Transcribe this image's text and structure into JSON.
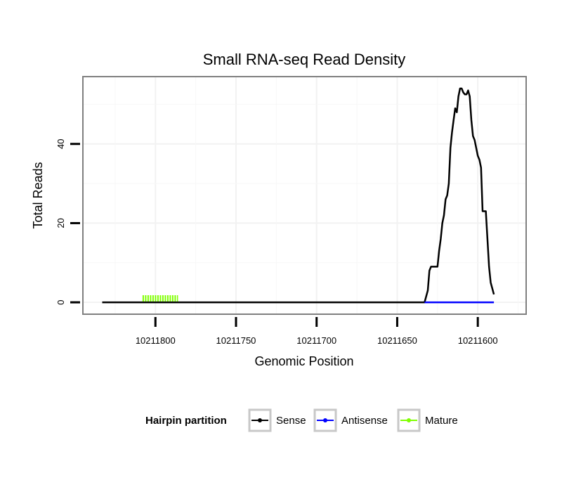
{
  "chart_data": {
    "type": "line",
    "title": "Small RNA-seq Read Density",
    "xlabel": "Genomic Position",
    "ylabel": "Total Reads",
    "x_reversed": true,
    "xlim": [
      10211845,
      10211570
    ],
    "ylim": [
      -3,
      57
    ],
    "x_ticks": [
      10211800,
      10211750,
      10211700,
      10211650,
      10211600
    ],
    "y_ticks": [
      0,
      20,
      40
    ],
    "grid": true,
    "legend": {
      "title": "Hairpin partition",
      "placement": "bottom",
      "entries": [
        "Sense",
        "Antisense",
        "Mature"
      ]
    },
    "series": [
      {
        "name": "Sense",
        "color": "#000000",
        "points": [
          [
            10211833,
            0
          ],
          [
            10211633,
            0
          ],
          [
            10211631,
            3
          ],
          [
            10211630,
            8
          ],
          [
            10211629,
            9
          ],
          [
            10211625,
            9
          ],
          [
            10211624,
            13
          ],
          [
            10211623,
            16
          ],
          [
            10211622,
            20
          ],
          [
            10211621,
            22
          ],
          [
            10211620,
            26
          ],
          [
            10211619,
            27
          ],
          [
            10211618,
            30
          ],
          [
            10211617,
            39
          ],
          [
            10211616,
            43
          ],
          [
            10211615,
            46
          ],
          [
            10211614,
            49
          ],
          [
            10211613,
            48
          ],
          [
            10211612,
            52
          ],
          [
            10211611,
            54
          ],
          [
            10211610,
            54
          ],
          [
            10211609,
            53
          ],
          [
            10211608,
            52.5
          ],
          [
            10211607,
            52.5
          ],
          [
            10211606,
            53.5
          ],
          [
            10211605,
            52
          ],
          [
            10211604,
            46
          ],
          [
            10211603,
            42
          ],
          [
            10211602,
            41
          ],
          [
            10211601,
            39
          ],
          [
            10211600,
            37
          ],
          [
            10211599,
            36
          ],
          [
            10211598,
            34
          ],
          [
            10211597,
            23
          ],
          [
            10211595,
            23
          ],
          [
            10211594,
            16
          ],
          [
            10211593,
            9
          ],
          [
            10211592,
            5
          ],
          [
            10211590,
            2
          ]
        ]
      },
      {
        "name": "Antisense",
        "color": "#0000ff",
        "points": [
          [
            10211633,
            0
          ],
          [
            10211590,
            0
          ]
        ]
      },
      {
        "name": "Mature",
        "color": "#7fff00",
        "points": [
          [
            10211808,
            1
          ],
          [
            10211786,
            1
          ]
        ]
      }
    ]
  }
}
